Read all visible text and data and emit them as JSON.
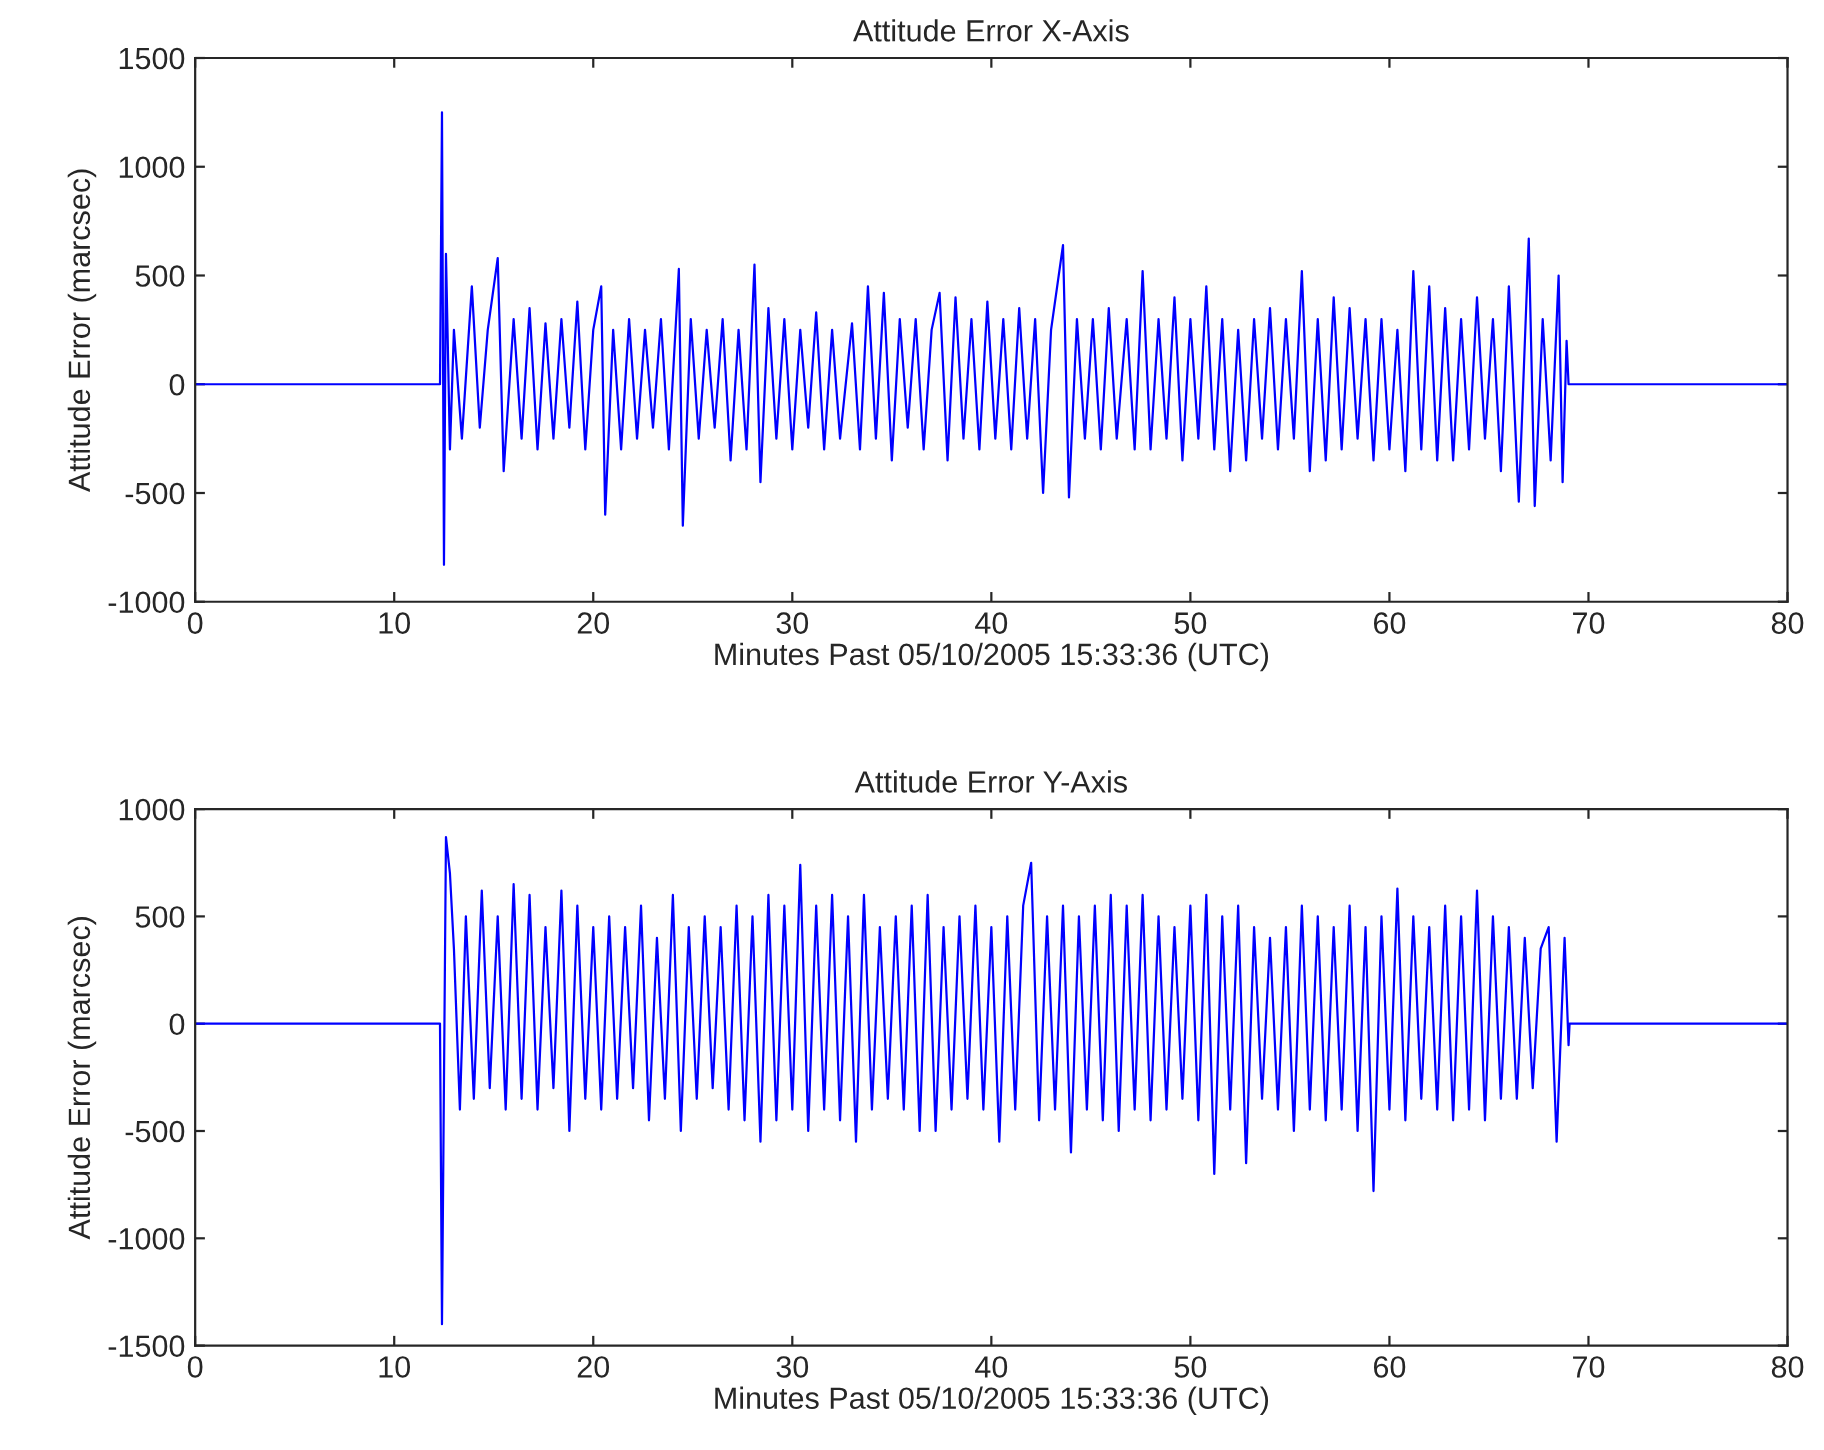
{
  "chart_data": [
    {
      "type": "line",
      "title": "Attitude Error X-Axis",
      "xlabel": "Minutes Past 05/10/2005 15:33:36 (UTC)",
      "ylabel": "Attitude Error (marcsec)",
      "xlim": [
        0,
        80
      ],
      "xticks": [
        0,
        10,
        20,
        30,
        40,
        50,
        60,
        70,
        80
      ],
      "ylim": [
        -1000,
        1500
      ],
      "yticks": [
        -1000,
        -500,
        0,
        500,
        1000,
        1500
      ],
      "grid": false,
      "marker": "none",
      "line_style": "solid",
      "series": [
        {
          "color": "#0000ff",
          "x": [
            0,
            12.3,
            12.4,
            12.5,
            12.6,
            12.8,
            13.0,
            13.4,
            13.9,
            14.3,
            14.7,
            15.2,
            15.5,
            16.0,
            16.4,
            16.8,
            17.2,
            17.6,
            18.0,
            18.4,
            18.8,
            19.2,
            19.6,
            20.0,
            20.4,
            20.6,
            21.0,
            21.4,
            21.8,
            22.2,
            22.6,
            23.0,
            23.4,
            23.8,
            24.3,
            24.5,
            24.9,
            25.3,
            25.7,
            26.1,
            26.5,
            26.9,
            27.3,
            27.7,
            28.1,
            28.4,
            28.8,
            29.2,
            29.6,
            30.0,
            30.4,
            30.8,
            31.2,
            31.6,
            32.0,
            32.4,
            33.0,
            33.4,
            33.8,
            34.2,
            34.6,
            35.0,
            35.4,
            35.8,
            36.2,
            36.6,
            37.0,
            37.4,
            37.8,
            38.2,
            38.6,
            39.0,
            39.4,
            39.8,
            40.2,
            40.6,
            41.0,
            41.4,
            41.8,
            42.2,
            42.6,
            43.0,
            43.6,
            43.9,
            44.3,
            44.7,
            45.1,
            45.5,
            45.9,
            46.3,
            46.8,
            47.2,
            47.6,
            48.0,
            48.4,
            48.8,
            49.2,
            49.6,
            50.0,
            50.4,
            50.8,
            51.2,
            51.6,
            52.0,
            52.4,
            52.8,
            53.2,
            53.6,
            54.0,
            54.4,
            54.8,
            55.2,
            55.6,
            56.0,
            56.4,
            56.8,
            57.2,
            57.6,
            58.0,
            58.4,
            58.8,
            59.2,
            59.6,
            60.0,
            60.4,
            60.8,
            61.2,
            61.6,
            62.0,
            62.4,
            62.8,
            63.2,
            63.6,
            64.0,
            64.4,
            64.8,
            65.2,
            65.6,
            66.0,
            66.4,
            66.5,
            67.0,
            67.3,
            67.7,
            68.1,
            68.5,
            68.7,
            68.9,
            69.0,
            80
          ],
          "values": [
            0,
            0,
            1250,
            -830,
            600,
            -300,
            250,
            -250,
            450,
            -200,
            250,
            580,
            -400,
            300,
            -250,
            350,
            -300,
            280,
            -250,
            300,
            -200,
            380,
            -300,
            250,
            450,
            -600,
            250,
            -300,
            300,
            -250,
            250,
            -200,
            300,
            -300,
            530,
            -650,
            300,
            -250,
            250,
            -200,
            300,
            -350,
            250,
            -300,
            550,
            -450,
            350,
            -250,
            300,
            -300,
            250,
            -200,
            330,
            -300,
            250,
            -250,
            280,
            -300,
            450,
            -250,
            420,
            -350,
            300,
            -200,
            300,
            -300,
            250,
            420,
            -350,
            400,
            -250,
            300,
            -300,
            380,
            -250,
            300,
            -300,
            350,
            -250,
            300,
            -500,
            250,
            640,
            -520,
            300,
            -250,
            300,
            -300,
            350,
            -250,
            300,
            -300,
            520,
            -300,
            300,
            -250,
            400,
            -350,
            300,
            -250,
            450,
            -300,
            300,
            -400,
            250,
            -350,
            300,
            -250,
            350,
            -300,
            300,
            -250,
            520,
            -400,
            300,
            -350,
            400,
            -300,
            350,
            -250,
            300,
            -350,
            300,
            -300,
            250,
            -400,
            520,
            -300,
            450,
            -350,
            350,
            -350,
            300,
            -300,
            400,
            -250,
            300,
            -400,
            450,
            -350,
            -540,
            670,
            -560,
            300,
            -350,
            500,
            -450,
            200,
            0,
            0
          ]
        }
      ]
    },
    {
      "type": "line",
      "title": "Attitude Error Y-Axis",
      "xlabel": "Minutes Past 05/10/2005 15:33:36 (UTC)",
      "ylabel": "Attitude Error (marcsec)",
      "xlim": [
        0,
        80
      ],
      "xticks": [
        0,
        10,
        20,
        30,
        40,
        50,
        60,
        70,
        80
      ],
      "ylim": [
        -1500,
        1000
      ],
      "yticks": [
        -1500,
        -1000,
        -500,
        0,
        500,
        1000
      ],
      "grid": false,
      "marker": "none",
      "line_style": "solid",
      "series": [
        {
          "color": "#0000ff",
          "x": [
            0,
            12.3,
            12.4,
            12.6,
            12.8,
            13.0,
            13.3,
            13.6,
            14.0,
            14.4,
            14.8,
            15.2,
            15.6,
            16.0,
            16.4,
            16.8,
            17.2,
            17.6,
            18.0,
            18.4,
            18.8,
            19.2,
            19.6,
            20.0,
            20.4,
            20.8,
            21.2,
            21.6,
            22.0,
            22.4,
            22.8,
            23.2,
            23.6,
            24.0,
            24.4,
            24.8,
            25.2,
            25.6,
            26.0,
            26.4,
            26.8,
            27.2,
            27.6,
            28.0,
            28.4,
            28.8,
            29.2,
            29.6,
            30.0,
            30.4,
            30.8,
            31.2,
            31.6,
            32.0,
            32.4,
            32.8,
            33.2,
            33.6,
            34.0,
            34.4,
            34.8,
            35.2,
            35.6,
            36.0,
            36.4,
            36.8,
            37.2,
            37.6,
            38.0,
            38.4,
            38.8,
            39.2,
            39.6,
            40.0,
            40.4,
            40.8,
            41.2,
            41.6,
            42.0,
            42.4,
            42.8,
            43.2,
            43.6,
            44.0,
            44.4,
            44.8,
            45.2,
            45.6,
            46.0,
            46.4,
            46.8,
            47.2,
            47.6,
            48.0,
            48.4,
            48.8,
            49.2,
            49.6,
            50.0,
            50.4,
            50.8,
            51.2,
            51.6,
            52.0,
            52.4,
            52.8,
            53.2,
            53.6,
            54.0,
            54.4,
            54.8,
            55.2,
            55.6,
            56.0,
            56.4,
            56.8,
            57.2,
            57.6,
            58.0,
            58.4,
            58.8,
            59.2,
            59.6,
            60.0,
            60.4,
            60.8,
            61.2,
            61.6,
            62.0,
            62.4,
            62.8,
            63.2,
            63.6,
            64.0,
            64.4,
            64.8,
            65.2,
            65.6,
            66.0,
            66.4,
            66.8,
            67.2,
            67.6,
            68.0,
            68.4,
            68.8,
            69.0,
            69.05,
            80
          ],
          "values": [
            0,
            0,
            -1400,
            870,
            700,
            350,
            -400,
            500,
            -350,
            620,
            -300,
            500,
            -400,
            650,
            -350,
            600,
            -400,
            450,
            -300,
            620,
            -500,
            550,
            -350,
            450,
            -400,
            500,
            -350,
            450,
            -300,
            550,
            -450,
            400,
            -350,
            600,
            -500,
            450,
            -350,
            500,
            -300,
            450,
            -400,
            550,
            -450,
            500,
            -550,
            600,
            -450,
            550,
            -400,
            740,
            -500,
            550,
            -400,
            600,
            -450,
            500,
            -550,
            600,
            -400,
            450,
            -350,
            500,
            -400,
            550,
            -500,
            600,
            -500,
            450,
            -400,
            500,
            -350,
            550,
            -400,
            450,
            -550,
            500,
            -400,
            550,
            750,
            -450,
            500,
            -400,
            550,
            -600,
            500,
            -400,
            550,
            -450,
            600,
            -500,
            550,
            -400,
            600,
            -450,
            500,
            -400,
            450,
            -350,
            550,
            -450,
            600,
            -700,
            500,
            -400,
            550,
            -650,
            450,
            -350,
            400,
            -400,
            450,
            -500,
            550,
            -400,
            500,
            -450,
            450,
            -400,
            550,
            -500,
            450,
            -780,
            500,
            -400,
            630,
            -450,
            500,
            -350,
            450,
            -400,
            550,
            -450,
            500,
            -400,
            620,
            -450,
            500,
            -350,
            450,
            -350,
            400,
            -300,
            350,
            450,
            -550,
            400,
            -100,
            0,
            0
          ]
        }
      ]
    }
  ]
}
